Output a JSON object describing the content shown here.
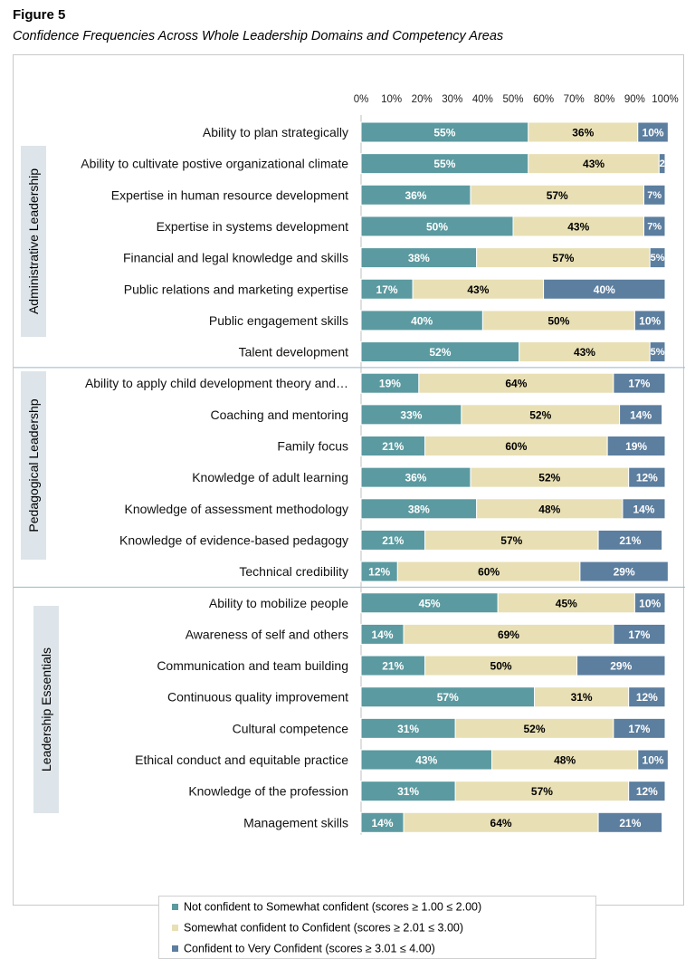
{
  "figure": {
    "label": "Figure 5",
    "caption": "Confidence Frequencies Across Whole Leadership Domains and Competency Areas"
  },
  "colors": {
    "notConfident": "#5b9aa0",
    "somewhat": "#e8dfb4",
    "confident": "#5c7e9f",
    "group_bg": "#dde5ea"
  },
  "chart_data": {
    "type": "bar",
    "orientation": "horizontal",
    "stacked": true,
    "title": "",
    "xlabel": "",
    "ylabel": "",
    "xlim": [
      0,
      100
    ],
    "x_tick_labels": [
      "0%",
      "10%",
      "20%",
      "30%",
      "40%",
      "50%",
      "60%",
      "70%",
      "80%",
      "90%",
      "100%"
    ],
    "legend_position": "bottom",
    "series": [
      {
        "name": "Not confident to Somewhat confident (scores ≥ 1.00 ≤ 2.00)",
        "color_key": "notConfident"
      },
      {
        "name": "Somewhat confident to Confident (scores ≥ 2.01 ≤ 3.00)",
        "color_key": "somewhat"
      },
      {
        "name": "Confident to Very Confident (scores ≥ 3.01 ≤ 4.00)",
        "color_key": "confident"
      }
    ],
    "groups": [
      {
        "name": "Administrative Leadership",
        "rows": [
          {
            "label": "Ability to plan strategically",
            "values": [
              55,
              36,
              10
            ],
            "labels": [
              "55%",
              "36%",
              "10%"
            ]
          },
          {
            "label": "Ability to cultivate postive organizational climate",
            "values": [
              55,
              43,
              2
            ],
            "labels": [
              "55%",
              "43%",
              "2"
            ]
          },
          {
            "label": "Expertise in human resource development",
            "values": [
              36,
              57,
              7
            ],
            "labels": [
              "36%",
              "57%",
              "7%"
            ]
          },
          {
            "label": "Expertise in systems development",
            "values": [
              50,
              43,
              7
            ],
            "labels": [
              "50%",
              "43%",
              "7%"
            ]
          },
          {
            "label": "Financial and legal knowledge and skills",
            "values": [
              38,
              57,
              5
            ],
            "labels": [
              "38%",
              "57%",
              "5%"
            ]
          },
          {
            "label": "Public relations and marketing expertise",
            "values": [
              17,
              43,
              40
            ],
            "labels": [
              "17%",
              "43%",
              "40%"
            ]
          },
          {
            "label": "Public engagement skills",
            "values": [
              40,
              50,
              10
            ],
            "labels": [
              "40%",
              "50%",
              "10%"
            ]
          },
          {
            "label": "Talent development",
            "values": [
              52,
              43,
              5
            ],
            "labels": [
              "52%",
              "43%",
              "5%"
            ]
          }
        ]
      },
      {
        "name": "Pedagogical Leadershp",
        "rows": [
          {
            "label": "Ability to apply child development theory and…",
            "values": [
              19,
              64,
              17
            ],
            "labels": [
              "19%",
              "64%",
              "17%"
            ]
          },
          {
            "label": "Coaching and mentoring",
            "values": [
              33,
              52,
              14
            ],
            "labels": [
              "33%",
              "52%",
              "14%"
            ]
          },
          {
            "label": "Family focus",
            "values": [
              21,
              60,
              19
            ],
            "labels": [
              "21%",
              "60%",
              "19%"
            ]
          },
          {
            "label": "Knowledge of adult learning",
            "values": [
              36,
              52,
              12
            ],
            "labels": [
              "36%",
              "52%",
              "12%"
            ]
          },
          {
            "label": "Knowledge of assessment methodology",
            "values": [
              38,
              48,
              14
            ],
            "labels": [
              "38%",
              "48%",
              "14%"
            ]
          },
          {
            "label": "Knowledge of evidence-based pedagogy",
            "values": [
              21,
              57,
              21
            ],
            "labels": [
              "21%",
              "57%",
              "21%"
            ]
          },
          {
            "label": "Technical credibility",
            "values": [
              12,
              60,
              29
            ],
            "labels": [
              "12%",
              "60%",
              "29%"
            ]
          }
        ]
      },
      {
        "name": "Leadership Essentials",
        "rows": [
          {
            "label": "Ability to mobilize people",
            "values": [
              45,
              45,
              10
            ],
            "labels": [
              "45%",
              "45%",
              "10%"
            ]
          },
          {
            "label": "Awareness of self and others",
            "values": [
              14,
              69,
              17
            ],
            "labels": [
              "14%",
              "69%",
              "17%"
            ]
          },
          {
            "label": "Communication and team building",
            "values": [
              21,
              50,
              29
            ],
            "labels": [
              "21%",
              "50%",
              "29%"
            ]
          },
          {
            "label": "Continuous quality improvement",
            "values": [
              57,
              31,
              12
            ],
            "labels": [
              "57%",
              "31%",
              "12%"
            ]
          },
          {
            "label": "Cultural competence",
            "values": [
              31,
              52,
              17
            ],
            "labels": [
              "31%",
              "52%",
              "17%"
            ]
          },
          {
            "label": "Ethical conduct and equitable practice",
            "values": [
              43,
              48,
              10
            ],
            "labels": [
              "43%",
              "48%",
              "10%"
            ]
          },
          {
            "label": "Knowledge of the profession",
            "values": [
              31,
              57,
              12
            ],
            "labels": [
              "31%",
              "57%",
              "12%"
            ]
          },
          {
            "label": "Management skills",
            "values": [
              14,
              64,
              21
            ],
            "labels": [
              "14%",
              "64%",
              "21%"
            ]
          }
        ]
      }
    ]
  }
}
